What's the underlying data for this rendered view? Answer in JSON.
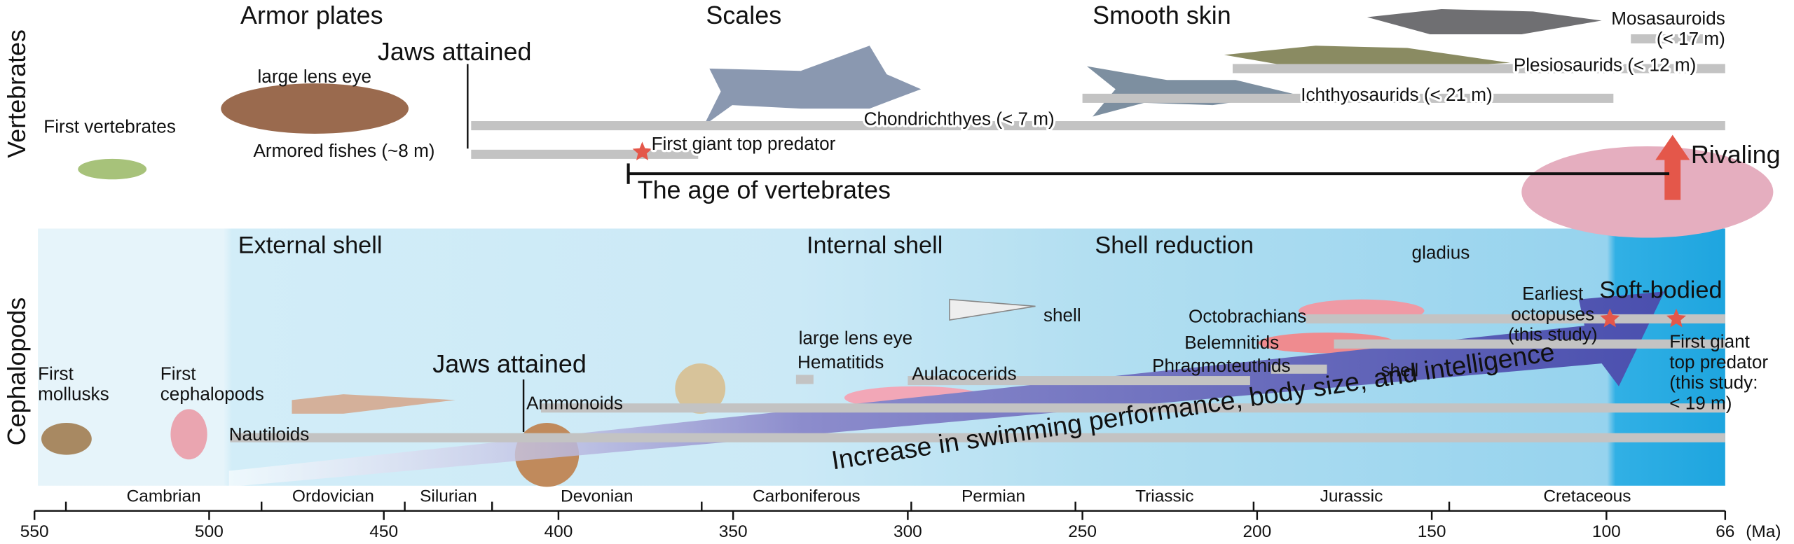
{
  "sections": {
    "vertebrates": "Vertebrates",
    "cephalopods": "Cephalopods"
  },
  "vertebrates": {
    "headings": [
      "Armor plates",
      "Scales",
      "Smooth skin"
    ],
    "first_vertebrates": "First vertebrates",
    "eye_label": "large lens eye",
    "jaws": {
      "label": "Jaws attained",
      "ma": 426
    },
    "lineages": [
      {
        "name": "Armored fishes (~8 m)",
        "start": 425,
        "end": 360
      },
      {
        "name": "Chondrichthyes (< 7 m)",
        "start": 425,
        "end": 66
      },
      {
        "name": "Ichthyosaurids (< 21 m)",
        "start": 250,
        "end": 98
      },
      {
        "name": "Plesiosaurids (< 12 m)",
        "start": 207,
        "end": 66
      },
      {
        "name": [
          "Mosasauroids",
          "(< 17 m)"
        ],
        "start": 93,
        "end": 66
      }
    ],
    "top_predator": {
      "label": "First giant top predator",
      "ma": 376
    },
    "age": {
      "label": "The age of vertebrates",
      "start": 380,
      "end": 82
    },
    "rivaling": "Rivaling"
  },
  "cephalopods": {
    "headings": [
      "External shell",
      "Internal shell",
      "Shell reduction",
      "Soft-bodied"
    ],
    "first_mollusks": [
      "First",
      "mollusks"
    ],
    "first_cephalopods": [
      "First",
      "cephalopods"
    ],
    "jaws": {
      "label": "Jaws attained",
      "ma": 410
    },
    "eye_label": "large lens eye",
    "shell_labels": [
      "shell",
      "shell"
    ],
    "gladius": "gladius",
    "lineages": [
      {
        "name": "Nautiloids",
        "start": 494,
        "end": 66
      },
      {
        "name": "Ammonoids",
        "start": 405,
        "end": 66
      },
      {
        "name": "Hematitids",
        "start": 332,
        "end": 327
      },
      {
        "name": "Aulacocerids",
        "start": 300,
        "end": 202
      },
      {
        "name": "Octobrachians",
        "start": 186,
        "end": 66
      },
      {
        "name": "Belemnitids",
        "start": 178,
        "end": 66
      },
      {
        "name": "Phragmoteuthids",
        "start": 196,
        "end": 180
      }
    ],
    "earliest_octopuses": {
      "label": [
        "Earliest",
        "octopuses",
        "(this study)"
      ],
      "ma": 99
    },
    "top_predator": {
      "label": [
        "First giant",
        "top predator",
        "(this study:",
        "< 19 m)"
      ],
      "ma": 80
    },
    "trend": "Increase in swimming performance, body size, and intelligence"
  },
  "axis": {
    "range": [
      550,
      66
    ],
    "ticks": [
      550,
      500,
      450,
      400,
      350,
      300,
      250,
      200,
      150,
      100,
      66
    ],
    "unit": "(Ma)",
    "periods": [
      {
        "name": "Cambrian",
        "start": 541,
        "end": 485
      },
      {
        "name": "Ordovician",
        "start": 485,
        "end": 444
      },
      {
        "name": "Silurian",
        "start": 444,
        "end": 419
      },
      {
        "name": "Devonian",
        "start": 419,
        "end": 359
      },
      {
        "name": "Carboniferous",
        "start": 359,
        "end": 299
      },
      {
        "name": "Permian",
        "start": 299,
        "end": 252
      },
      {
        "name": "Triassic",
        "start": 252,
        "end": 201
      },
      {
        "name": "Jurassic",
        "start": 201,
        "end": 145
      },
      {
        "name": "Cretaceous",
        "start": 145,
        "end": 66
      }
    ]
  }
}
